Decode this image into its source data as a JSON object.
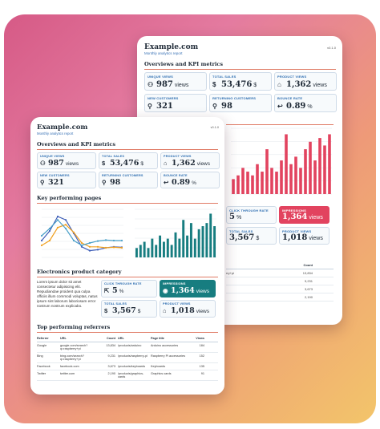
{
  "back": {
    "brand": "Example.com",
    "subtitle": "Monthly analytics report",
    "version": "v0.1.0",
    "kpi_section": "Overviews and KPI metrics",
    "kpis": [
      {
        "label": "UNIQUE VIEWS",
        "value": "987",
        "unit": "views",
        "icon": "users-icon"
      },
      {
        "label": "TOTAL SALES",
        "value": "53,476",
        "unit": "$",
        "icon": "dollar-icon"
      },
      {
        "label": "PRODUCT VIEWS",
        "value": "1,362",
        "unit": "views",
        "icon": "store-icon"
      },
      {
        "label": "NEW CUSTOMERS",
        "value": "321",
        "unit": "",
        "icon": "user-add-icon"
      },
      {
        "label": "RETURNING CUSTOMERS",
        "value": "98",
        "unit": "",
        "icon": "user-return-icon"
      },
      {
        "label": "BOUNCE RATE",
        "value": "0.89",
        "unit": "%",
        "icon": "return-arrow-icon"
      }
    ],
    "lower": [
      {
        "label": "CLICK THROUGH RATE",
        "value": "5",
        "unit": "%"
      },
      {
        "label": "IMPRESSIONS",
        "value": "1,364",
        "unit": "views",
        "highlight": true
      },
      {
        "label": "TOTAL SALES",
        "value": "3,567",
        "unit": "$"
      },
      {
        "label": "PRODUCT VIEWS",
        "value": "1,018",
        "unit": "views"
      }
    ],
    "table": {
      "header": "Count",
      "rows": [
        {
          "url": "rry+pi",
          "count": "13,834"
        },
        {
          "url": "",
          "count": "9,231"
        },
        {
          "url": "",
          "count": "3,673"
        },
        {
          "url": "",
          "count": "2,190"
        }
      ]
    }
  },
  "front": {
    "brand": "Example.com",
    "subtitle": "Monthly analytics report",
    "version": "v0.1.0",
    "kpi_section": "Overviews and KPI metrics",
    "kpis": [
      {
        "label": "UNIQUE VIEWS",
        "value": "987",
        "unit": "views",
        "icon": "users-icon"
      },
      {
        "label": "TOTAL SALES",
        "value": "53,476",
        "unit": "$",
        "icon": "dollar-icon"
      },
      {
        "label": "PRODUCT VIEWS",
        "value": "1,362",
        "unit": "views",
        "icon": "store-icon"
      },
      {
        "label": "NEW CUSTOMERS",
        "value": "321",
        "unit": "",
        "icon": "user-add-icon"
      },
      {
        "label": "RETURNING CUSTOMERS",
        "value": "98",
        "unit": "",
        "icon": "user-return-icon"
      },
      {
        "label": "BOUNCE RATE",
        "value": "0.89",
        "unit": "%",
        "icon": "return-arrow-icon"
      }
    ],
    "pages_section": "Key performing pages",
    "elec_section": "Electronics product category",
    "elec_text": "Lorem ipsum dolor sit amet consectetur adipisicing elit. Repudiandae proident qua culpa officiis illum commodi voluptas, natus ipsum sint laborum laboriosam error nostrum nostrum explicabo.",
    "elec_tiles": [
      {
        "label": "CLICK THROUGH RATE",
        "value": "5",
        "unit": "%",
        "icon": "cursor-icon"
      },
      {
        "label": "IMPRESSIONS",
        "value": "1,364",
        "unit": "views",
        "icon": "eye-icon",
        "highlight": true
      },
      {
        "label": "TOTAL SALES",
        "value": "3,567",
        "unit": "$",
        "icon": "dollar-icon"
      },
      {
        "label": "PRODUCT VIEWS",
        "value": "1,018",
        "unit": "views",
        "icon": "store-icon"
      }
    ],
    "ref_section": "Top performing referrers",
    "ref_headers": [
      "Referrer",
      "URL",
      "Count",
      "URL",
      "Page title",
      "Views"
    ],
    "ref_rows": [
      [
        "Google",
        "google.com/search?q=raspberry+pi",
        "13,834",
        "/products/arduino",
        "Arduino accessories",
        "184"
      ],
      [
        "Bing",
        "bing.com/search?q=raspberry+pi",
        "9,231",
        "/products/raspberry-pi",
        "Raspberry Pi accessories",
        "152"
      ],
      [
        "Facebook",
        "facebook.com",
        "3,673",
        "/products/keyboards",
        "Keyboards",
        "135"
      ],
      [
        "Twitter",
        "twitter.com",
        "2,190",
        "/products/graphics-cards",
        "Graphics cards",
        "91"
      ]
    ]
  },
  "chart_data": [
    {
      "type": "line",
      "series": [
        {
          "values": [
            0.35,
            0.55,
            0.85,
            0.78,
            0.5,
            0.22,
            0.14,
            0.16,
            0.2,
            0.22,
            0.21
          ]
        },
        {
          "values": [
            0.25,
            0.35,
            0.62,
            0.68,
            0.52,
            0.3,
            0.22,
            0.22,
            0.2,
            0.21,
            0.2
          ]
        },
        {
          "values": [
            0.45,
            0.6,
            0.78,
            0.6,
            0.35,
            0.25,
            0.3,
            0.34,
            0.36,
            0.35,
            0.35
          ]
        }
      ],
      "colors": [
        "#3f5fb8",
        "#f0a020",
        "#4aa0c8"
      ]
    },
    {
      "type": "bar",
      "values": [
        3,
        4,
        5,
        3,
        6,
        4,
        7,
        5,
        6,
        4,
        8,
        6,
        12,
        7,
        11,
        6,
        9,
        10,
        11,
        14,
        10
      ],
      "colors": [
        "#177d80"
      ]
    },
    {
      "type": "bar",
      "values": [
        4,
        5,
        7,
        6,
        5,
        8,
        6,
        12,
        7,
        6,
        9,
        16,
        8,
        10,
        7,
        12,
        14,
        9,
        15,
        13,
        16
      ],
      "colors": [
        "#e2435f"
      ]
    }
  ]
}
